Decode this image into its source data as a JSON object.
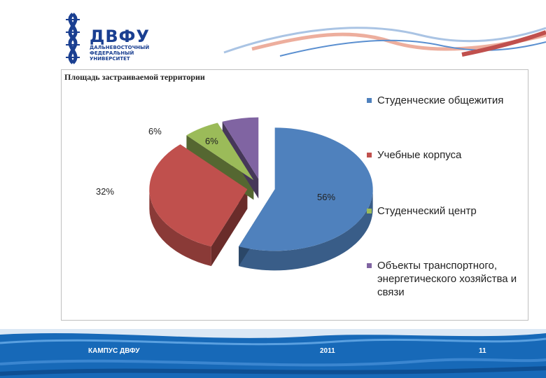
{
  "logo": {
    "name": "ДВФУ",
    "subtitle_lines": [
      "ДАЛЬНЕВОСТОЧНЫЙ",
      "ФЕДЕРАЛЬНЫЙ",
      "УНИВЕРСИТЕТ"
    ]
  },
  "chart_data": {
    "type": "pie",
    "title": "Площадь застраиваемой территории",
    "categories": [
      "Студенческие общежития",
      "Учебные корпуса",
      "Студенческий центр",
      "Объекты транспортного, энергетического хозяйства и связи"
    ],
    "values": [
      56,
      32,
      6,
      6
    ],
    "data_labels": [
      "56%",
      "32%",
      "6%",
      "6%"
    ],
    "colors": [
      "#4f81bd",
      "#c0504d",
      "#9bbb59",
      "#8064a2"
    ],
    "legend_placement": "right",
    "exploded": true,
    "three_d": true
  },
  "footer": {
    "left": "КАМПУС ДВФУ",
    "center": "2011",
    "right": "11"
  }
}
